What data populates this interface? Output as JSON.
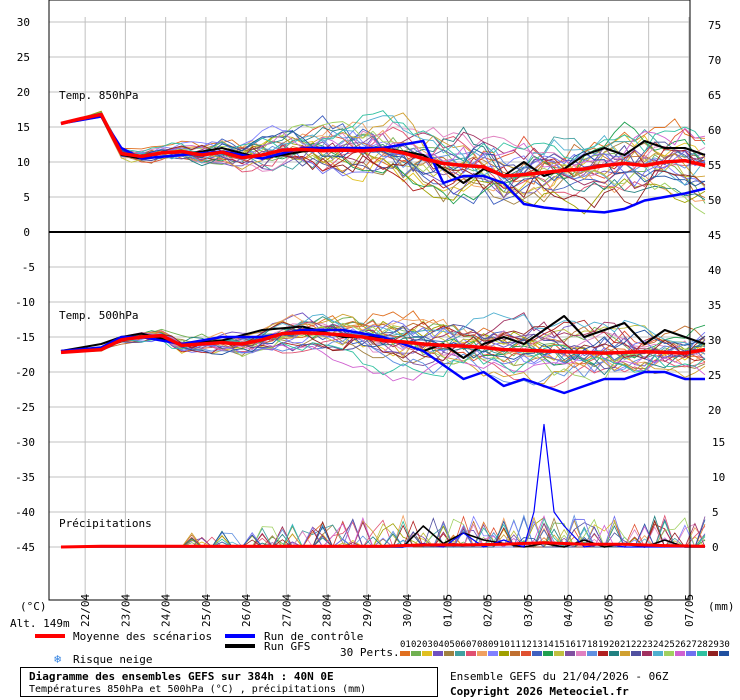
{
  "chart_data": {
    "type": "line",
    "x_dates": [
      "22/04",
      "23/04",
      "24/04",
      "25/04",
      "26/04",
      "27/04",
      "28/04",
      "29/04",
      "30/04",
      "01/05",
      "02/05",
      "03/05",
      "04/05",
      "05/05",
      "06/05",
      "07/05"
    ],
    "x_range_days": [
      0,
      16
    ],
    "panels": [
      {
        "label": "Temp. 850hPa",
        "y_left_ticks": [
          30,
          25,
          20,
          15,
          10,
          5,
          0
        ],
        "y_left_range": [
          0,
          30
        ],
        "series": {
          "mean": {
            "color": "#ff0000",
            "x": [
              0,
              0.5,
              1,
              1.5,
              2,
              2.5,
              3,
              3.5,
              4,
              4.5,
              5,
              5.5,
              6,
              6.5,
              7,
              7.5,
              8,
              8.5,
              9,
              9.5,
              10,
              10.5,
              11,
              11.5,
              12,
              12.5,
              13,
              13.5,
              14,
              14.5,
              15,
              15.5,
              16
            ],
            "y": [
              15.5,
              16.2,
              16.8,
              11.2,
              10.8,
              11.3,
              11.5,
              11.0,
              11.4,
              10.6,
              11.0,
              11.7,
              11.8,
              11.6,
              11.7,
              11.6,
              11.8,
              11.3,
              10.5,
              9.8,
              9.5,
              9.3,
              8.0,
              8.2,
              8.5,
              8.8,
              9.0,
              9.5,
              9.8,
              9.5,
              10.0,
              10.2,
              9.5
            ]
          },
          "control": {
            "color": "#0000ff",
            "x": [
              0,
              1,
              1.5,
              2,
              3,
              4,
              5,
              6,
              7,
              8,
              9,
              9.5,
              10,
              10.5,
              11,
              11.5,
              12,
              12.5,
              13,
              13.5,
              14,
              14.5,
              15,
              15.5,
              16
            ],
            "y": [
              15.5,
              16.5,
              12,
              10.5,
              11,
              11.5,
              10.5,
              12,
              12,
              12,
              13,
              7,
              8,
              8,
              7,
              4,
              3.5,
              3.2,
              3.0,
              2.8,
              3.3,
              4.5,
              5,
              5.5,
              6.2
            ]
          },
          "gfs": {
            "color": "#000000",
            "x": [
              0,
              1,
              1.5,
              2,
              3,
              4,
              5,
              6,
              7,
              8,
              9,
              9.5,
              10,
              10.5,
              11,
              11.5,
              12,
              12.5,
              13,
              13.5,
              14,
              14.5,
              15,
              15.5,
              16
            ],
            "y": [
              15.5,
              16.5,
              11,
              10.5,
              11,
              12,
              10.5,
              11.5,
              12,
              12,
              11,
              9,
              7,
              9,
              8,
              10,
              8,
              9,
              11,
              12,
              11,
              13,
              12,
              12,
              11
            ]
          }
        }
      },
      {
        "label": "Temp. 500hPa",
        "y_left_ticks": [
          0,
          -5,
          -10,
          -15,
          -20,
          -25,
          -30,
          -35,
          -40,
          -45
        ],
        "y_left_range": [
          -45,
          0
        ],
        "series": {
          "mean": {
            "color": "#ff0000",
            "x": [
              0,
              0.5,
              1,
              1.5,
              2,
              2.5,
              3,
              3.5,
              4,
              4.5,
              5,
              5.5,
              6,
              6.5,
              7,
              7.5,
              8,
              8.5,
              9,
              9.5,
              10,
              10.5,
              11,
              11.5,
              12,
              12.5,
              13,
              13.5,
              14,
              14.5,
              15,
              15.5,
              16
            ],
            "y": [
              -17.2,
              -17.0,
              -16.8,
              -15.4,
              -15.0,
              -14.8,
              -16.2,
              -16.0,
              -15.8,
              -16.0,
              -15.4,
              -14.5,
              -14.4,
              -14.5,
              -14.7,
              -15.0,
              -15.5,
              -15.7,
              -16.0,
              -16.2,
              -16.3,
              -16.5,
              -16.8,
              -16.9,
              -17.0,
              -17.1,
              -17.2,
              -17.3,
              -17.2,
              -17.1,
              -17.2,
              -17.3,
              -16.8
            ]
          },
          "control": {
            "color": "#0000ff",
            "x": [
              0,
              1,
              1.5,
              2,
              3,
              4,
              5,
              6,
              7,
              8,
              9,
              9.5,
              10,
              10.5,
              11,
              11.5,
              12,
              12.5,
              13,
              13.5,
              14,
              14.5,
              15,
              15.5,
              16
            ],
            "y": [
              -17,
              -16.5,
              -15,
              -15,
              -16,
              -15,
              -15,
              -14,
              -14,
              -15,
              -17,
              -19,
              -21,
              -20,
              -22,
              -21,
              -22,
              -23,
              -22,
              -21,
              -21,
              -20,
              -20,
              -21,
              -21
            ]
          },
          "gfs": {
            "color": "#000000",
            "x": [
              0,
              1,
              1.5,
              2,
              3,
              4,
              5,
              6,
              7,
              8,
              9,
              9.5,
              10,
              10.5,
              11,
              11.5,
              12,
              12.5,
              13,
              13.5,
              14,
              14.5,
              15,
              15.5,
              16
            ],
            "y": [
              -17,
              -16,
              -15,
              -14.5,
              -16,
              -15.5,
              -14,
              -13.5,
              -15,
              -15,
              -17,
              -16,
              -18,
              -16,
              -15,
              -16,
              -14,
              -12,
              -15,
              -14,
              -13,
              -16,
              -14,
              -15,
              -16
            ]
          }
        },
        "precip": {
          "label": "Précipitations",
          "y_right_ticks": [
            15,
            10,
            5,
            0
          ],
          "y_right_range_mm": [
            0,
            20
          ],
          "control": {
            "color": "#0000ff",
            "x": [
              0,
              1,
              2,
              3,
              4,
              5,
              6,
              7,
              8,
              8.5,
              9,
              9.5,
              10,
              10.5,
              11,
              11.5,
              11.75,
              12,
              12.25,
              12.5,
              13,
              13.5,
              14,
              14.5,
              15,
              15.5,
              16
            ],
            "y": [
              0,
              0,
              0,
              0,
              0,
              0,
              0,
              0,
              0,
              0,
              0.5,
              0,
              2,
              0,
              1,
              0,
              5,
              17.5,
              5,
              3,
              0,
              0.5,
              0,
              0,
              0,
              0,
              0
            ]
          },
          "gfs": {
            "color": "#000000",
            "x": [
              0,
              1,
              2,
              3,
              4,
              5,
              6,
              7,
              8,
              8.5,
              9,
              9.5,
              10,
              10.5,
              11,
              11.5,
              12,
              12.5,
              13,
              13.5,
              14,
              14.5,
              15,
              15.5,
              16
            ],
            "y": [
              0,
              0,
              0,
              0,
              0,
              0,
              0,
              0,
              0,
              0,
              3,
              0.5,
              2,
              1,
              0.5,
              0,
              0.5,
              0,
              1,
              0,
              0.5,
              0,
              1,
              0,
              0
            ]
          },
          "mean": {
            "color": "#ff0000",
            "x": [
              0,
              1,
              2,
              3,
              4,
              5,
              6,
              7,
              8,
              9,
              10,
              11,
              12,
              13,
              14,
              15,
              16
            ],
            "y": [
              0,
              0.1,
              0.1,
              0.1,
              0.1,
              0.1,
              0.1,
              0.1,
              0.1,
              0.3,
              0.3,
              0.4,
              0.6,
              0.4,
              0.4,
              0.2,
              0.1
            ]
          }
        }
      }
    ],
    "y_right_ticks_upper": [
      75,
      70,
      65,
      60,
      55,
      50,
      45,
      40,
      35,
      30,
      25,
      20
    ],
    "left_unit": "(°C)",
    "right_unit": "(mm)",
    "altitude": "Alt. 149m",
    "legend": {
      "mean": "Moyenne des scénarios",
      "control": "Run de contrôle",
      "gfs": "Run GFS",
      "snow": "Risque neige",
      "perts": "30 Perts.",
      "pert_numbers": [
        "01",
        "02",
        "03",
        "04",
        "05",
        "06",
        "07",
        "08",
        "09",
        "10",
        "11",
        "12",
        "13",
        "14",
        "15",
        "16",
        "17",
        "18",
        "19",
        "20",
        "21",
        "22",
        "23",
        "24",
        "25",
        "26",
        "27",
        "28",
        "29",
        "30"
      ],
      "pert_colors": [
        "#e07020",
        "#70b050",
        "#e0c020",
        "#7050c0",
        "#a08040",
        "#40a0a0",
        "#e05070",
        "#f0a060",
        "#8080ff",
        "#a0a000",
        "#c07030",
        "#e05030",
        "#4060c0",
        "#20a050",
        "#c0c040",
        "#8050a0",
        "#e080c0",
        "#6090e0",
        "#b02020",
        "#208080",
        "#d0a030",
        "#5050a0",
        "#a03060",
        "#50b0d0",
        "#a0d060",
        "#d060d0",
        "#7070f0",
        "#30c0a0",
        "#902020",
        "#2050a0"
      ]
    },
    "colors": {
      "mean": "#ff0000",
      "control": "#0000ff",
      "gfs": "#000000",
      "grid": "#c0c0c0"
    }
  },
  "footer": {
    "title": "Diagramme des ensembles GEFS sur 384h : 40N 0E",
    "subtitle": "Températures 850hPa et 500hPa (°C) , précipitations (mm)",
    "ensemble": "Ensemble GEFS du 21/04/2026 - 06Z",
    "copyright": "Copyright 2026 Meteociel.fr"
  }
}
